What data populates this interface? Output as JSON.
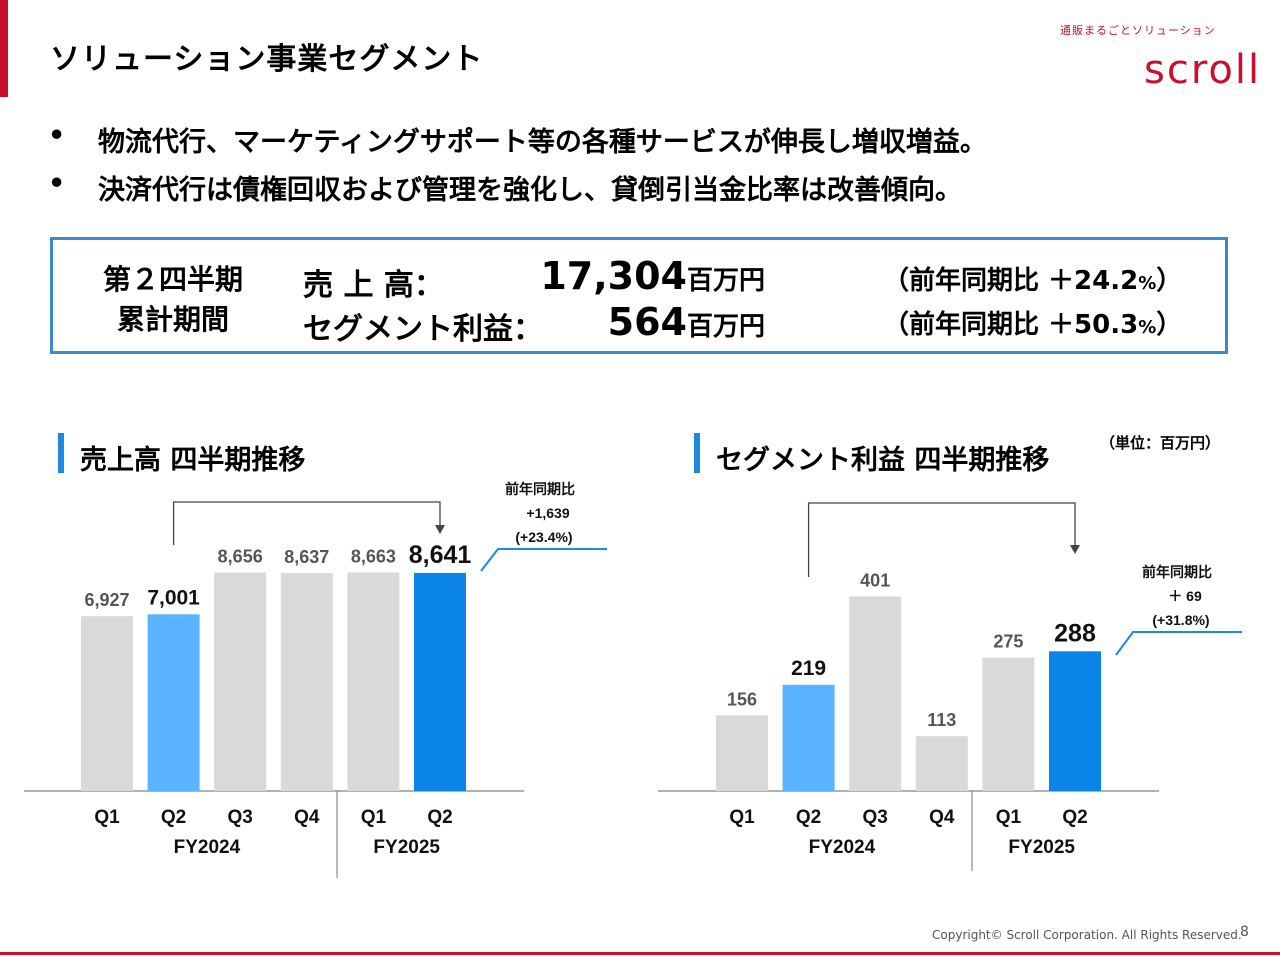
{
  "header": {
    "title": "ソリューション事業セグメント",
    "logo_tagline": "通販まるごとソリューション",
    "logo_word": "scroll"
  },
  "bullets": [
    {
      "marker": "•",
      "text": "物流代行、マーケティングサポート等の各種サービスが伸長し増収増益。"
    },
    {
      "marker": "•",
      "text": "決済代行は債権回収および管理を強化し、貸倒引当金比率は改善傾向。"
    }
  ],
  "summary": {
    "period_line1": "第２四半期",
    "period_line2": "累計期間",
    "sales_label": "売 上 高：",
    "sales_value": "17,304",
    "sales_unit": "百万円",
    "sales_ratio_prefix": "（前年同期比 ＋24.2",
    "sales_ratio_pct": "%",
    "sales_ratio_suffix": "）",
    "profit_label": "セグメント利益：",
    "profit_value": "564",
    "profit_unit": "百万円",
    "profit_ratio_prefix": "（前年同期比 ＋50.3",
    "profit_ratio_pct": "%",
    "profit_ratio_suffix": "）"
  },
  "unit_note": "（単位：百万円）",
  "chart_data": [
    {
      "type": "bar",
      "title": "売上高 四半期推移",
      "categories": [
        "Q1",
        "Q2",
        "Q3",
        "Q4",
        "Q1",
        "Q2"
      ],
      "groups": [
        {
          "label": "FY2024",
          "categories": [
            "Q1",
            "Q2",
            "Q3",
            "Q4"
          ]
        },
        {
          "label": "FY2025",
          "categories": [
            "Q1",
            "Q2"
          ]
        }
      ],
      "values": [
        6927,
        7001,
        8656,
        8637,
        8663,
        8641
      ],
      "labels": [
        "6,927",
        "7,001",
        "8,656",
        "8,637",
        "8,663",
        "8,641"
      ],
      "bar_colors": [
        "#d9d9d9",
        "#5ab4ff",
        "#d9d9d9",
        "#d9d9d9",
        "#d9d9d9",
        "#0a84e6"
      ],
      "ylim": [
        0,
        10500
      ],
      "annotation": {
        "line1": "前年同期比",
        "line2": "+1,639",
        "line3": "(+23.4%)"
      }
    },
    {
      "type": "bar",
      "title": "セグメント利益 四半期推移",
      "categories": [
        "Q1",
        "Q2",
        "Q3",
        "Q4",
        "Q1",
        "Q2"
      ],
      "groups": [
        {
          "label": "FY2024",
          "categories": [
            "Q1",
            "Q2",
            "Q3",
            "Q4"
          ]
        },
        {
          "label": "FY2025",
          "categories": [
            "Q1",
            "Q2"
          ]
        }
      ],
      "values": [
        156,
        219,
        401,
        113,
        275,
        288
      ],
      "labels": [
        "156",
        "219",
        "401",
        "113",
        "275",
        "288"
      ],
      "bar_colors": [
        "#d9d9d9",
        "#5ab4ff",
        "#d9d9d9",
        "#d9d9d9",
        "#d9d9d9",
        "#0a84e6"
      ],
      "ylim": [
        0,
        400
      ],
      "annotation": {
        "line1": "前年同期比",
        "line2": "＋ 69",
        "line3": "(+31.8%)"
      }
    }
  ],
  "footer": {
    "copyright": "Copyright© Scroll Corporation. All Rights Reserved.",
    "page": "8"
  }
}
